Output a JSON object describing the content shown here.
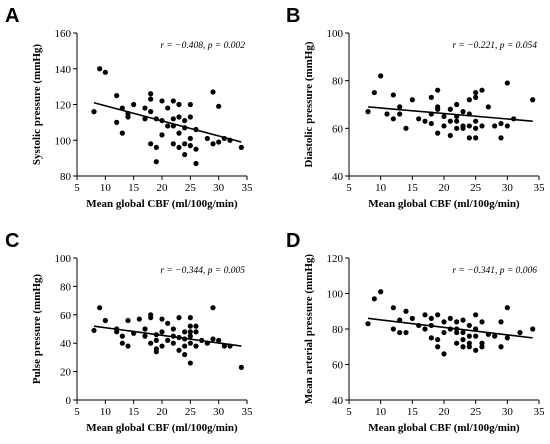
{
  "chart_data": [
    {
      "type": "scatter",
      "panel": "A",
      "ylabel": "Systolic pressure (mmHg)",
      "xlabel": "Mean global CBF (ml/100g/min)",
      "stat": "r = −0.408, p = 0.002",
      "xlim": [
        5,
        35
      ],
      "ylim": [
        80,
        160
      ],
      "xticks": [
        "5",
        "10",
        "15",
        "20",
        "25",
        "30",
        "35"
      ],
      "yticks": [
        "80",
        "100",
        "120",
        "140",
        "160"
      ],
      "fit": {
        "x": [
          8,
          34
        ],
        "y": [
          121,
          99
        ]
      },
      "points": [
        [
          8,
          116
        ],
        [
          9,
          140
        ],
        [
          10,
          138
        ],
        [
          12,
          125
        ],
        [
          12,
          110
        ],
        [
          13,
          118
        ],
        [
          13,
          104
        ],
        [
          14,
          115
        ],
        [
          14,
          113
        ],
        [
          15,
          120
        ],
        [
          17,
          118
        ],
        [
          17,
          112
        ],
        [
          18,
          126
        ],
        [
          18,
          123
        ],
        [
          18,
          116
        ],
        [
          18,
          98
        ],
        [
          19,
          112
        ],
        [
          19,
          88
        ],
        [
          19,
          96
        ],
        [
          20,
          122
        ],
        [
          20,
          111
        ],
        [
          20,
          103
        ],
        [
          21,
          118
        ],
        [
          21,
          108
        ],
        [
          22,
          122
        ],
        [
          22,
          112
        ],
        [
          22,
          108
        ],
        [
          22,
          98
        ],
        [
          23,
          120
        ],
        [
          23,
          113
        ],
        [
          23,
          104
        ],
        [
          23,
          96
        ],
        [
          24,
          111
        ],
        [
          24,
          107
        ],
        [
          24,
          98
        ],
        [
          24,
          92
        ],
        [
          25,
          120
        ],
        [
          25,
          113
        ],
        [
          25,
          101
        ],
        [
          25,
          97
        ],
        [
          26,
          95
        ],
        [
          26,
          106
        ],
        [
          26,
          87
        ],
        [
          28,
          101
        ],
        [
          29,
          127
        ],
        [
          29,
          98
        ],
        [
          30,
          119
        ],
        [
          30,
          99
        ],
        [
          31,
          101
        ],
        [
          32,
          100
        ],
        [
          34,
          96
        ]
      ]
    },
    {
      "type": "scatter",
      "panel": "B",
      "ylabel": "Diastolic pressure (mmHg)",
      "xlabel": "Mean global CBF (ml/100g/min)",
      "stat": "r = −0.221, p = 0.054",
      "xlim": [
        5,
        35
      ],
      "ylim": [
        40,
        100
      ],
      "xticks": [
        "5",
        "10",
        "15",
        "20",
        "25",
        "30",
        "35"
      ],
      "yticks": [
        "40",
        "60",
        "80",
        "100"
      ],
      "fit": {
        "x": [
          8,
          34
        ],
        "y": [
          69,
          63
        ]
      },
      "points": [
        [
          8,
          67
        ],
        [
          9,
          75
        ],
        [
          10,
          82
        ],
        [
          11,
          66
        ],
        [
          12,
          74
        ],
        [
          12,
          64
        ],
        [
          13,
          69
        ],
        [
          13,
          66
        ],
        [
          14,
          60
        ],
        [
          15,
          72
        ],
        [
          16,
          64
        ],
        [
          17,
          63
        ],
        [
          18,
          66
        ],
        [
          18,
          73
        ],
        [
          18,
          62
        ],
        [
          19,
          69
        ],
        [
          19,
          76
        ],
        [
          19,
          58
        ],
        [
          19,
          68
        ],
        [
          20,
          65
        ],
        [
          20,
          61
        ],
        [
          21,
          63
        ],
        [
          21,
          68
        ],
        [
          21,
          57
        ],
        [
          22,
          70
        ],
        [
          22,
          65
        ],
        [
          22,
          60
        ],
        [
          22,
          63
        ],
        [
          23,
          67
        ],
        [
          23,
          60
        ],
        [
          23,
          61
        ],
        [
          24,
          72
        ],
        [
          24,
          66
        ],
        [
          24,
          61
        ],
        [
          24,
          56
        ],
        [
          25,
          75
        ],
        [
          25,
          73
        ],
        [
          25,
          63
        ],
        [
          25,
          60
        ],
        [
          25,
          56
        ],
        [
          26,
          61
        ],
        [
          26,
          76
        ],
        [
          27,
          69
        ],
        [
          28,
          61
        ],
        [
          29,
          62
        ],
        [
          29,
          56
        ],
        [
          30,
          79
        ],
        [
          30,
          61
        ],
        [
          31,
          64
        ],
        [
          34,
          72
        ]
      ]
    },
    {
      "type": "scatter",
      "panel": "C",
      "ylabel": "Pulse pressure (mmHg)",
      "xlabel": "Mean global CBF (ml/100g/min)",
      "stat": "r = −0.344, p = 0.005",
      "xlim": [
        5,
        35
      ],
      "ylim": [
        0,
        100
      ],
      "xticks": [
        "5",
        "10",
        "15",
        "20",
        "25",
        "30",
        "35"
      ],
      "yticks": [
        "0",
        "20",
        "40",
        "60",
        "80",
        "100"
      ],
      "fit": {
        "x": [
          8,
          34
        ],
        "y": [
          52,
          38
        ]
      },
      "points": [
        [
          8,
          49
        ],
        [
          9,
          65
        ],
        [
          10,
          56
        ],
        [
          12,
          48
        ],
        [
          12,
          50
        ],
        [
          13,
          45
        ],
        [
          13,
          40
        ],
        [
          14,
          38
        ],
        [
          14,
          56
        ],
        [
          15,
          47
        ],
        [
          16,
          57
        ],
        [
          17,
          50
        ],
        [
          17,
          45
        ],
        [
          18,
          58
        ],
        [
          18,
          60
        ],
        [
          18,
          40
        ],
        [
          19,
          36
        ],
        [
          19,
          42
        ],
        [
          19,
          46
        ],
        [
          19,
          34
        ],
        [
          20,
          57
        ],
        [
          20,
          48
        ],
        [
          20,
          38
        ],
        [
          21,
          42
        ],
        [
          21,
          54
        ],
        [
          22,
          50
        ],
        [
          22,
          45
        ],
        [
          22,
          40
        ],
        [
          23,
          58
        ],
        [
          23,
          44
        ],
        [
          23,
          35
        ],
        [
          24,
          48
        ],
        [
          24,
          43
        ],
        [
          24,
          38
        ],
        [
          24,
          32
        ],
        [
          25,
          58
        ],
        [
          25,
          52
        ],
        [
          25,
          48
        ],
        [
          25,
          45
        ],
        [
          25,
          40
        ],
        [
          25,
          26
        ],
        [
          26,
          48
        ],
        [
          26,
          38
        ],
        [
          26,
          52
        ],
        [
          27,
          42
        ],
        [
          28,
          40
        ],
        [
          29,
          65
        ],
        [
          29,
          43
        ],
        [
          30,
          42
        ],
        [
          31,
          38
        ],
        [
          32,
          38
        ],
        [
          34,
          23
        ]
      ]
    },
    {
      "type": "scatter",
      "panel": "D",
      "ylabel": "Mean arterial pressure (mmHg)",
      "xlabel": "Mean global CBF (ml/100g/min)",
      "stat": "r = −0.341, p = 0.006",
      "xlim": [
        5,
        35
      ],
      "ylim": [
        40,
        120
      ],
      "xticks": [
        "5",
        "10",
        "15",
        "20",
        "25",
        "30",
        "35"
      ],
      "yticks": [
        "40",
        "60",
        "80",
        "100",
        "120"
      ],
      "fit": {
        "x": [
          8,
          34
        ],
        "y": [
          86,
          75
        ]
      },
      "points": [
        [
          8,
          83
        ],
        [
          9,
          97
        ],
        [
          10,
          101
        ],
        [
          12,
          92
        ],
        [
          12,
          80
        ],
        [
          13,
          85
        ],
        [
          13,
          78
        ],
        [
          14,
          78
        ],
        [
          14,
          90
        ],
        [
          15,
          86
        ],
        [
          16,
          82
        ],
        [
          17,
          80
        ],
        [
          17,
          88
        ],
        [
          18,
          86
        ],
        [
          18,
          82
        ],
        [
          18,
          75
        ],
        [
          19,
          88
        ],
        [
          19,
          74
        ],
        [
          19,
          70
        ],
        [
          20,
          84
        ],
        [
          20,
          78
        ],
        [
          20,
          66
        ],
        [
          21,
          80
        ],
        [
          21,
          86
        ],
        [
          22,
          84
        ],
        [
          22,
          78
        ],
        [
          22,
          80
        ],
        [
          22,
          72
        ],
        [
          23,
          85
        ],
        [
          23,
          78
        ],
        [
          23,
          74
        ],
        [
          23,
          70
        ],
        [
          24,
          82
        ],
        [
          24,
          76
        ],
        [
          24,
          72
        ],
        [
          24,
          70
        ],
        [
          25,
          88
        ],
        [
          25,
          80
        ],
        [
          25,
          76
        ],
        [
          25,
          68
        ],
        [
          26,
          84
        ],
        [
          26,
          72
        ],
        [
          26,
          70
        ],
        [
          27,
          77
        ],
        [
          28,
          76
        ],
        [
          29,
          84
        ],
        [
          29,
          70
        ],
        [
          30,
          92
        ],
        [
          30,
          75
        ],
        [
          32,
          78
        ],
        [
          34,
          80
        ]
      ]
    }
  ]
}
